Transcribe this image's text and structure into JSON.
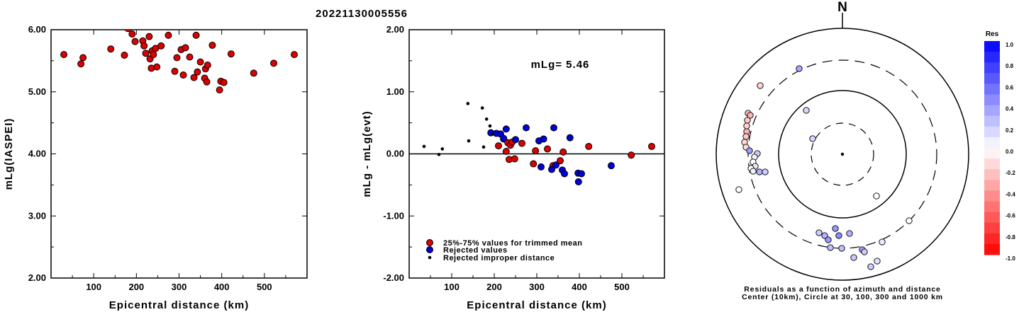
{
  "title": "20221130005556",
  "colors": {
    "trimmed": "#dd0000",
    "rejected": "#0000dd",
    "improper": "#000000",
    "res_pos": "#0000ff",
    "res_neg": "#ff0000"
  },
  "chart_data": [
    {
      "type": "scatter",
      "xlabel": "Epicentral distance (km)",
      "ylabel": "mLg(IASPEI)",
      "xlim": [
        0,
        600
      ],
      "ylim": [
        2.0,
        6.0
      ],
      "xticks": [
        "100",
        "200",
        "300",
        "400",
        "500"
      ],
      "yticks": [
        "2.00",
        "3.00",
        "4.00",
        "5.00",
        "6.00"
      ],
      "series": [
        {
          "points": [
            [
              30,
              5.6
            ],
            [
              70,
              5.45
            ],
            [
              75,
              5.55
            ],
            [
              140,
              5.69
            ],
            [
              172,
              5.59
            ],
            [
              180,
              6.02
            ],
            [
              190,
              5.93
            ],
            [
              197,
              5.81
            ],
            [
              215,
              5.82
            ],
            [
              218,
              5.74
            ],
            [
              222,
              5.62
            ],
            [
              230,
              5.89
            ],
            [
              232,
              5.53
            ],
            [
              235,
              5.38
            ],
            [
              237,
              5.66
            ],
            [
              240,
              5.6
            ],
            [
              245,
              5.7
            ],
            [
              248,
              5.4
            ],
            [
              258,
              5.74
            ],
            [
              275,
              5.91
            ],
            [
              290,
              5.33
            ],
            [
              295,
              5.55
            ],
            [
              305,
              5.68
            ],
            [
              310,
              5.27
            ],
            [
              315,
              5.71
            ],
            [
              325,
              5.56
            ],
            [
              335,
              5.23
            ],
            [
              340,
              5.91
            ],
            [
              343,
              5.32
            ],
            [
              350,
              5.48
            ],
            [
              360,
              5.22
            ],
            [
              362,
              5.37
            ],
            [
              365,
              5.16
            ],
            [
              367,
              5.43
            ],
            [
              378,
              5.75
            ],
            [
              395,
              5.03
            ],
            [
              398,
              5.17
            ],
            [
              405,
              5.15
            ],
            [
              422,
              5.61
            ],
            [
              475,
              5.3
            ],
            [
              522,
              5.46
            ],
            [
              570,
              5.6
            ]
          ]
        }
      ]
    },
    {
      "type": "scatter",
      "xlabel": "Epicentral distance (km)",
      "ylabel": "mLg - mLg(evt)",
      "xlim": [
        0,
        600
      ],
      "ylim": [
        -2.0,
        2.0
      ],
      "xticks": [
        "100",
        "200",
        "300",
        "400",
        "500"
      ],
      "yticks": [
        "-2.00",
        "-1.00",
        "0.00",
        "1.00",
        "2.00"
      ],
      "annotation": "mLg= 5.46",
      "series": [
        {
          "name": "25%-75% values for trimmed mean",
          "points": [
            [
              210,
              0.13
            ],
            [
              222,
              0.24
            ],
            [
              228,
              0.04
            ],
            [
              232,
              0.18
            ],
            [
              235,
              -0.09
            ],
            [
              238,
              0.14
            ],
            [
              242,
              0.19
            ],
            [
              248,
              -0.08
            ],
            [
              265,
              0.17
            ],
            [
              292,
              -0.16
            ],
            [
              297,
              0.05
            ],
            [
              325,
              0.08
            ],
            [
              338,
              -0.19
            ],
            [
              355,
              -0.11
            ],
            [
              362,
              0.03
            ],
            [
              422,
              0.12
            ],
            [
              522,
              -0.02
            ],
            [
              570,
              0.12
            ]
          ]
        },
        {
          "name": "Rejected values",
          "points": [
            [
              192,
              0.34
            ],
            [
              205,
              0.33
            ],
            [
              215,
              0.32
            ],
            [
              222,
              0.25
            ],
            [
              228,
              0.4
            ],
            [
              250,
              0.23
            ],
            [
              275,
              0.42
            ],
            [
              305,
              0.21
            ],
            [
              310,
              -0.21
            ],
            [
              316,
              0.24
            ],
            [
              335,
              -0.25
            ],
            [
              340,
              0.42
            ],
            [
              345,
              -0.18
            ],
            [
              360,
              -0.26
            ],
            [
              365,
              -0.32
            ],
            [
              378,
              0.26
            ],
            [
              397,
              -0.31
            ],
            [
              398,
              -0.45
            ],
            [
              405,
              -0.32
            ],
            [
              475,
              -0.19
            ]
          ]
        },
        {
          "name": "Rejected improper distance",
          "points": [
            [
              35,
              0.12
            ],
            [
              70,
              -0.01
            ],
            [
              78,
              0.08
            ],
            [
              138,
              0.81
            ],
            [
              140,
              0.21
            ],
            [
              172,
              0.74
            ],
            [
              175,
              0.11
            ],
            [
              182,
              0.56
            ],
            [
              190,
              0.45
            ],
            [
              196,
              0.32
            ]
          ]
        }
      ]
    },
    {
      "type": "scatter",
      "title": "N",
      "caption": [
        "Residuals as a function of azimuth and distance",
        "Center (10km), Circle at 30, 100, 300 and 1000 km"
      ],
      "colorbar_title": "Res",
      "colorbar_ticks": [
        "1.0",
        "0.8",
        "0.6",
        "0.4",
        "0.2",
        "0.0",
        "-0.2",
        "-0.4",
        "-0.6",
        "-0.8",
        "-1.0"
      ],
      "range_rings_km": [
        30,
        100,
        300,
        1000
      ],
      "points_residual": [
        [
          -1.3,
          -0.5,
          0.34
        ],
        [
          -1.1,
          3.2,
          0.24
        ],
        [
          -1.2,
          2.6,
          0.16
        ],
        [
          -0.6,
          3.1,
          -0.2
        ],
        [
          -0.6,
          3.2,
          -0.25
        ],
        [
          -0.3,
          3.4,
          0.13
        ],
        [
          -0.4,
          3.6,
          0.42
        ],
        [
          -0.5,
          3.7,
          0.22
        ],
        [
          -0.55,
          3.85,
          0.25
        ],
        [
          -0.65,
          4.0,
          -0.1
        ],
        [
          -0.7,
          4.2,
          -0.15
        ],
        [
          -0.8,
          4.35,
          0.05
        ],
        [
          -0.8,
          4.5,
          -0.1
        ],
        [
          -0.85,
          4.65,
          -0.2
        ],
        [
          -0.9,
          4.8,
          -0.18
        ],
        [
          -0.9,
          4.95,
          -0.3
        ],
        [
          -0.95,
          5.1,
          -0.25
        ],
        [
          -1.0,
          5.3,
          -0.32
        ],
        [
          -1.05,
          5.6,
          -0.22
        ],
        [
          -1.1,
          6.0,
          -0.12
        ],
        [
          -1.15,
          6.4,
          0.0
        ],
        [
          -1.2,
          7.0,
          0.0
        ],
        [
          -1.0,
          7.3,
          0.0
        ],
        [
          -1.1,
          7.5,
          0.12
        ],
        [
          -1.05,
          7.7,
          0.35
        ],
        [
          -1.1,
          7.9,
          0.26
        ],
        [
          -1.2,
          8.1,
          0.0
        ],
        [
          -1.3,
          8.3,
          0.05
        ],
        [
          -1.35,
          8.6,
          0.1
        ],
        [
          -1.5,
          8.9,
          0.0
        ],
        [
          -1.25,
          9.2,
          0.02
        ],
        [
          -1.3,
          9.5,
          0.3
        ],
        [
          -1.15,
          -0.6,
          0.0
        ],
        [
          -1.4,
          -0.8,
          -0.05
        ]
      ]
    }
  ]
}
